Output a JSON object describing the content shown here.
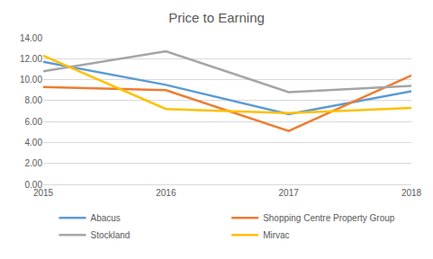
{
  "chart_data": {
    "type": "line",
    "title": "Price to Earning",
    "categories": [
      "2015",
      "2016",
      "2017",
      "2018"
    ],
    "series": [
      {
        "name": "Abacus",
        "color": "#5b9bd5",
        "values": [
          11.7,
          9.5,
          6.7,
          8.9
        ]
      },
      {
        "name": "Shopping Centre Property Group",
        "color": "#ed7d31",
        "values": [
          9.3,
          9.0,
          5.1,
          10.4
        ]
      },
      {
        "name": "Stockland",
        "color": "#a5a5a5",
        "values": [
          10.8,
          12.7,
          8.8,
          9.4
        ]
      },
      {
        "name": "Mirvac",
        "color": "#ffc000",
        "values": [
          12.3,
          7.2,
          6.8,
          7.3
        ]
      }
    ],
    "ylim": [
      0,
      14
    ],
    "yticks": [
      {
        "value": 0,
        "label": "0.00"
      },
      {
        "value": 2,
        "label": "2.00"
      },
      {
        "value": 4,
        "label": "4.00"
      },
      {
        "value": 6,
        "label": "6.00"
      },
      {
        "value": 8,
        "label": "8.00"
      },
      {
        "value": 10,
        "label": "10.00"
      },
      {
        "value": 12,
        "label": "12.00"
      },
      {
        "value": 14,
        "label": "14.00"
      }
    ],
    "grid": true,
    "legend": "bottom"
  }
}
